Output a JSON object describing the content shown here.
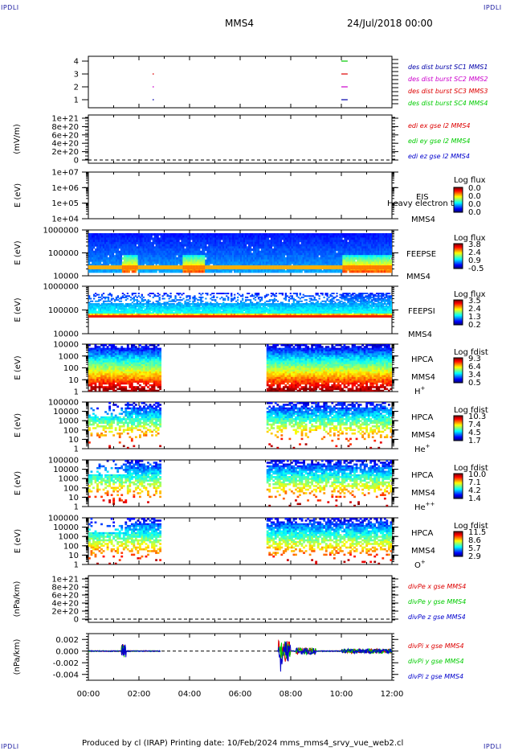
{
  "corner_labels": {
    "top_left": "IPDLI",
    "top_right": "IPDLI",
    "bottom_left": "IPDLI",
    "bottom_right": "IPDLI"
  },
  "header": {
    "spacecraft": "MMS4",
    "date": "24/Jul/2018 00:00"
  },
  "footer": "Produced by cl (IRAP)    Printing date: 10/Feb/2024    mms_mms4_srvy_vue_web2.cl",
  "colors": {
    "red": "#dd0000",
    "green": "#00cc00",
    "blue": "#0000cc",
    "magenta": "#cc00cc",
    "legend_blue": "#0000aa"
  },
  "chart_data": {
    "type": "heatmap",
    "title": "MMS4",
    "x_ticks": [
      "00:00",
      "02:00",
      "04:00",
      "06:00",
      "08:00",
      "10:00",
      "12:00"
    ],
    "xlim": [
      0,
      12
    ],
    "panels": [
      {
        "name": "burst",
        "type": "scatter",
        "y_ticks": [
          "4",
          "3",
          "2",
          "1"
        ],
        "ylim": [
          0.5,
          4.5
        ],
        "legend": [
          "des dist burst SC1 MMS1",
          "des dist burst SC2 MMS2",
          "des dist burst SC3 MMS3",
          "des dist burst SC4 MMS4"
        ],
        "legend_colors": [
          "#0000aa",
          "#cc00cc",
          "#dd0000",
          "#00cc00"
        ],
        "series": [
          {
            "name": "des dist burst SC4 MMS4",
            "y": 4,
            "x": [
              10.0,
              10.25
            ]
          },
          {
            "name": "des dist burst SC3 MMS3",
            "y": 3,
            "x": [
              2.55,
              10.0,
              10.25
            ]
          },
          {
            "name": "des dist burst SC2 MMS2",
            "y": 2,
            "x": [
              2.55,
              10.0,
              10.25
            ]
          },
          {
            "name": "des dist burst SC1 MMS1",
            "y": 1,
            "x": [
              2.55,
              10.0,
              10.25
            ]
          }
        ]
      },
      {
        "name": "edi",
        "type": "line",
        "ylabel": "(mV/m)",
        "y_ticks": [
          "1e+21",
          "8e+20",
          "6e+20",
          "4e+20",
          "2e+20",
          "0"
        ],
        "ylim": [
          0,
          1e+21
        ],
        "legend": [
          "edi ex gse l2 MMS4",
          "edi ey gse l2 MMS4",
          "edi ez gse l2 MMS4"
        ],
        "legend_colors": [
          "#dd0000",
          "#00cc00",
          "#0000cc"
        ]
      },
      {
        "name": "eis",
        "type": "heatmap",
        "ylabel": "E (eV)",
        "y_ticks": [
          "1e+07",
          "1e+06",
          "1e+05",
          "1e+04"
        ],
        "ylim": [
          10000.0,
          10000000.0
        ],
        "instrument": "EIS",
        "species": "Heavy electron to",
        "spacecraft": "MMS4",
        "colorbar_title": "Log flux",
        "colorbar_ticks": [
          "0.0",
          "0.0",
          "0.0",
          "0.0"
        ]
      },
      {
        "name": "feepse",
        "type": "heatmap",
        "ylabel": "E (eV)",
        "y_ticks": [
          "1000000",
          "100000",
          "10000"
        ],
        "ylim": [
          10000,
          1000000
        ],
        "instrument": "FEEPSE",
        "spacecraft": "MMS4",
        "colorbar_title": "Log flux",
        "colorbar_ticks": [
          "3.8",
          "2.4",
          "0.9",
          "-0.5"
        ]
      },
      {
        "name": "feepsi",
        "type": "heatmap",
        "ylabel": "E (eV)",
        "y_ticks": [
          "1000000",
          "100000",
          "10000"
        ],
        "ylim": [
          10000,
          1000000
        ],
        "instrument": "FEEPSI",
        "spacecraft": "MMS4",
        "colorbar_title": "Log flux",
        "colorbar_ticks": [
          "3.5",
          "2.4",
          "1.3",
          "0.2"
        ]
      },
      {
        "name": "hpca_h",
        "type": "heatmap",
        "ylabel": "E (eV)",
        "y_ticks": [
          "10000",
          "1000",
          "100",
          "10",
          "1"
        ],
        "ylim": [
          1,
          40000
        ],
        "instrument": "HPCA",
        "spacecraft": "MMS4",
        "species_base": "H",
        "species_sup": "+",
        "colorbar_title": "Log fdist",
        "colorbar_ticks": [
          "9.3",
          "6.4",
          "3.4",
          "0.5"
        ],
        "data_intervals": [
          [
            0,
            2.85
          ],
          [
            7.0,
            12.0
          ]
        ]
      },
      {
        "name": "hpca_he",
        "type": "heatmap",
        "ylabel": "E (eV)",
        "y_ticks": [
          "100000",
          "10000",
          "1000",
          "100",
          "10",
          "1"
        ],
        "ylim": [
          1,
          100000
        ],
        "instrument": "HPCA",
        "spacecraft": "MMS4",
        "species_base": "He",
        "species_sup": "+",
        "colorbar_title": "Log fdist",
        "colorbar_ticks": [
          "10.3",
          "7.4",
          "4.5",
          "1.7"
        ],
        "data_intervals": [
          [
            0,
            2.85
          ],
          [
            7.0,
            12.0
          ]
        ]
      },
      {
        "name": "hpca_hepp",
        "type": "heatmap",
        "ylabel": "E (eV)",
        "y_ticks": [
          "100000",
          "10000",
          "1000",
          "100",
          "10",
          "1"
        ],
        "ylim": [
          1,
          100000
        ],
        "instrument": "HPCA",
        "spacecraft": "MMS4",
        "species_base": "He",
        "species_sup": "++",
        "colorbar_title": "Log fdist",
        "colorbar_ticks": [
          "10.0",
          "7.1",
          "4.2",
          "1.4"
        ],
        "data_intervals": [
          [
            0,
            2.85
          ],
          [
            7.0,
            12.0
          ]
        ]
      },
      {
        "name": "hpca_o",
        "type": "heatmap",
        "ylabel": "E (eV)",
        "y_ticks": [
          "100000",
          "10000",
          "1000",
          "100",
          "10",
          "1"
        ],
        "ylim": [
          1,
          100000
        ],
        "instrument": "HPCA",
        "spacecraft": "MMS4",
        "species_base": "O",
        "species_sup": "+",
        "colorbar_title": "Log fdist",
        "colorbar_ticks": [
          "11.5",
          "8.6",
          "5.7",
          "2.9"
        ],
        "data_intervals": [
          [
            0,
            2.85
          ],
          [
            7.0,
            12.0
          ]
        ]
      },
      {
        "name": "divpe",
        "type": "line",
        "ylabel": "(nPa/km)",
        "y_ticks": [
          "1e+21",
          "8e+20",
          "6e+20",
          "4e+20",
          "2e+20",
          "0"
        ],
        "ylim": [
          0,
          1e+21
        ],
        "legend": [
          "divPe x gse MMS4",
          "divPe y gse MMS4",
          "divPe z gse MMS4"
        ],
        "legend_colors": [
          "#dd0000",
          "#00cc00",
          "#0000cc"
        ]
      },
      {
        "name": "divpi",
        "type": "line",
        "ylabel": "(nPa/km)",
        "y_ticks": [
          "0.002",
          "0.000",
          "-0.002",
          "-0.004"
        ],
        "ylim": [
          -0.005,
          0.003
        ],
        "legend": [
          "divPi x gse MMS4",
          "divPi y gse MMS4",
          "divPi z gse MMS4"
        ],
        "legend_colors": [
          "#dd0000",
          "#00cc00",
          "#0000cc"
        ]
      }
    ]
  }
}
